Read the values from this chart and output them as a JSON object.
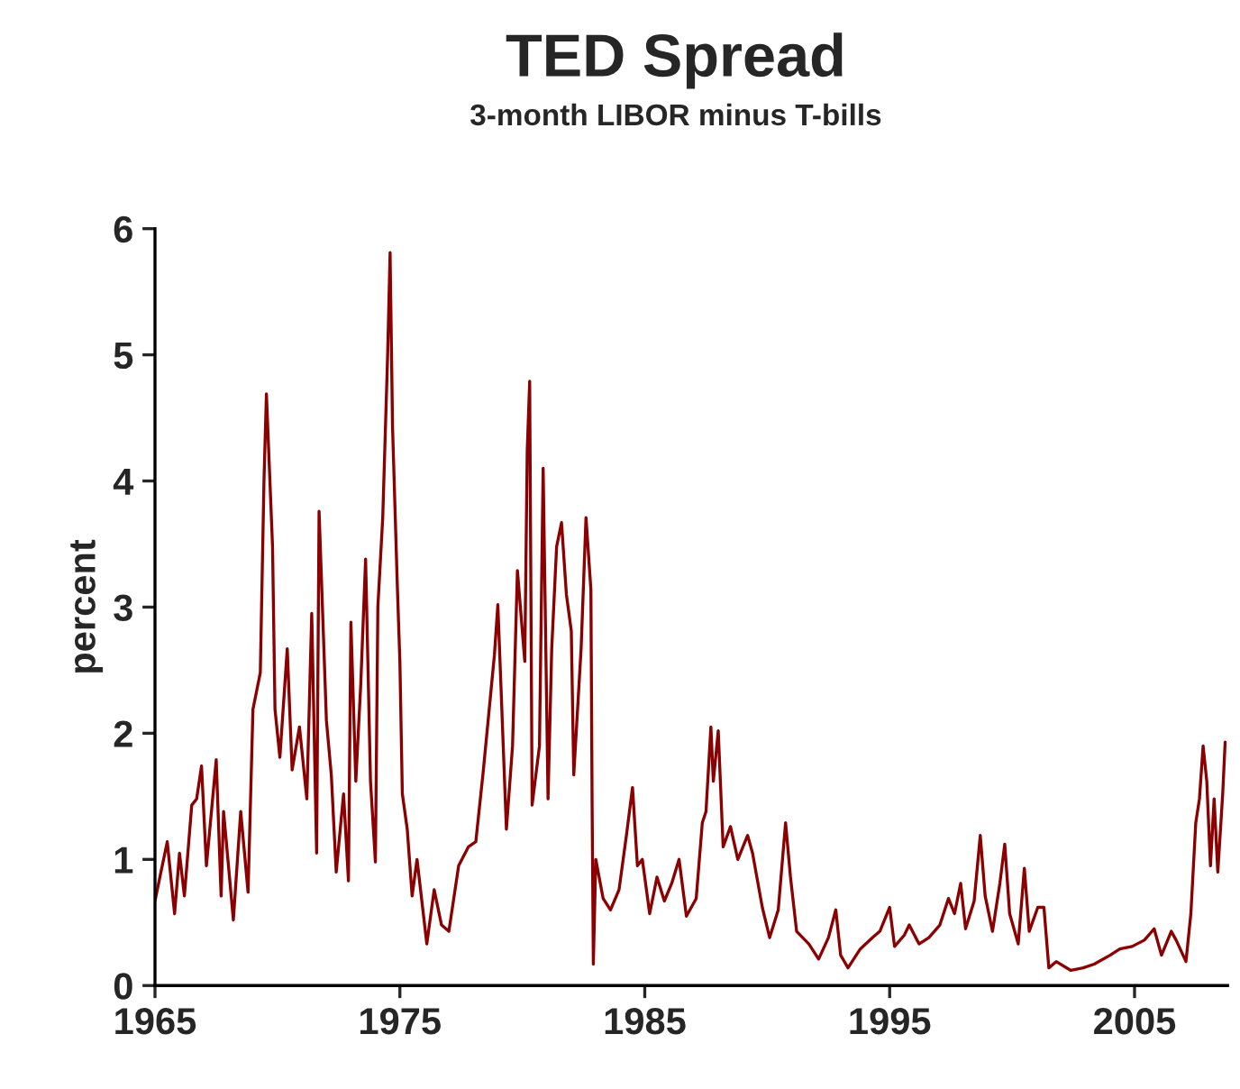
{
  "chart_data": {
    "type": "line",
    "title": "TED Spread",
    "subtitle": "3-month LIBOR minus T-bills",
    "ylabel": "percent",
    "x": [
      1965.0,
      1965.2,
      1965.5,
      1965.8,
      1966.0,
      1966.2,
      1966.5,
      1966.7,
      1966.9,
      1967.1,
      1967.5,
      1967.7,
      1967.8,
      1968.2,
      1968.5,
      1968.8,
      1969.0,
      1969.3,
      1969.45,
      1969.55,
      1969.8,
      1969.9,
      1970.1,
      1970.4,
      1970.6,
      1970.9,
      1971.2,
      1971.4,
      1971.6,
      1971.7,
      1972.0,
      1972.2,
      1972.4,
      1972.7,
      1972.9,
      1973.0,
      1973.2,
      1973.4,
      1973.6,
      1973.8,
      1974.0,
      1974.1,
      1974.3,
      1974.5,
      1974.6,
      1974.7,
      1974.9,
      1975.0,
      1975.1,
      1975.3,
      1975.5,
      1975.7,
      1976.1,
      1976.4,
      1976.7,
      1977.0,
      1977.4,
      1977.8,
      1978.1,
      1978.4,
      1978.86,
      1979.0,
      1979.35,
      1979.6,
      1979.8,
      1980.1,
      1980.2,
      1980.3,
      1980.4,
      1980.7,
      1980.85,
      1981.05,
      1981.2,
      1981.4,
      1981.6,
      1981.8,
      1982.0,
      1982.1,
      1982.4,
      1982.6,
      1982.8,
      1982.85,
      1982.9,
      1983.0,
      1983.3,
      1983.6,
      1983.95,
      1984.25,
      1984.5,
      1984.7,
      1984.9,
      1985.2,
      1985.5,
      1985.8,
      1986.1,
      1986.4,
      1986.7,
      1987.1,
      1987.35,
      1987.5,
      1987.7,
      1987.8,
      1988.0,
      1988.2,
      1988.5,
      1988.8,
      1989.2,
      1989.4,
      1989.8,
      1990.1,
      1990.45,
      1990.75,
      1990.95,
      1991.2,
      1991.7,
      1992.1,
      1992.5,
      1992.8,
      1993.0,
      1993.3,
      1993.8,
      1994.3,
      1994.6,
      1995.0,
      1995.2,
      1995.6,
      1995.8,
      1996.2,
      1996.6,
      1997.05,
      1997.4,
      1997.65,
      1997.9,
      1998.1,
      1998.45,
      1998.7,
      1998.9,
      1999.2,
      1999.5,
      1999.7,
      1999.9,
      2000.25,
      2000.5,
      2000.7,
      2001.05,
      2001.3,
      2001.5,
      2001.8,
      2002.4,
      2002.9,
      2003.35,
      2004.0,
      2004.4,
      2004.9,
      2005.4,
      2005.8,
      2006.1,
      2006.5,
      2006.7,
      2007.1,
      2007.3,
      2007.5,
      2007.65,
      2007.8,
      2007.95,
      2008.1,
      2008.25,
      2008.4,
      2008.6,
      2008.7
    ],
    "series": [
      {
        "color": "#8b0000",
        "values": [
          0.67,
          0.86,
          1.14,
          0.57,
          1.05,
          0.71,
          1.43,
          1.48,
          1.74,
          0.95,
          1.79,
          0.71,
          1.38,
          0.52,
          1.38,
          0.74,
          2.19,
          2.48,
          4.0,
          4.69,
          3.48,
          2.19,
          1.81,
          2.67,
          1.71,
          2.05,
          1.48,
          2.95,
          1.05,
          3.76,
          2.1,
          1.67,
          0.9,
          1.52,
          0.83,
          2.88,
          1.62,
          2.38,
          3.38,
          1.62,
          0.98,
          3.0,
          3.71,
          5.0,
          5.81,
          4.43,
          3.14,
          2.57,
          1.52,
          1.24,
          0.71,
          1.0,
          0.33,
          0.76,
          0.48,
          0.43,
          0.95,
          1.1,
          1.14,
          1.69,
          2.62,
          3.02,
          1.24,
          1.9,
          3.29,
          2.57,
          4.24,
          4.79,
          1.43,
          1.9,
          4.1,
          1.48,
          2.67,
          3.48,
          3.67,
          3.1,
          2.81,
          1.67,
          2.67,
          3.71,
          3.14,
          1.43,
          0.17,
          1.0,
          0.69,
          0.6,
          0.76,
          1.19,
          1.57,
          0.95,
          1.0,
          0.57,
          0.86,
          0.67,
          0.81,
          1.0,
          0.55,
          0.69,
          1.29,
          1.38,
          2.05,
          1.62,
          2.02,
          1.1,
          1.26,
          1.0,
          1.19,
          1.05,
          0.62,
          0.38,
          0.6,
          1.29,
          0.86,
          0.43,
          0.33,
          0.21,
          0.38,
          0.6,
          0.24,
          0.14,
          0.29,
          0.38,
          0.43,
          0.62,
          0.31,
          0.4,
          0.48,
          0.33,
          0.38,
          0.48,
          0.69,
          0.57,
          0.81,
          0.45,
          0.67,
          1.19,
          0.71,
          0.43,
          0.81,
          1.12,
          0.57,
          0.33,
          0.93,
          0.43,
          0.62,
          0.62,
          0.14,
          0.19,
          0.12,
          0.14,
          0.17,
          0.24,
          0.29,
          0.31,
          0.36,
          0.45,
          0.24,
          0.43,
          0.36,
          0.19,
          0.57,
          1.29,
          1.48,
          1.9,
          1.62,
          0.95,
          1.48,
          0.9,
          1.52,
          1.93
        ]
      }
    ],
    "xlim": [
      1965,
      2008.8
    ],
    "xticks": [
      1965,
      1975,
      1985,
      1995,
      2005
    ],
    "ylim": [
      0,
      6
    ],
    "yticks": [
      0,
      1,
      2,
      3,
      4,
      5,
      6
    ],
    "grid": false,
    "legend": false
  }
}
